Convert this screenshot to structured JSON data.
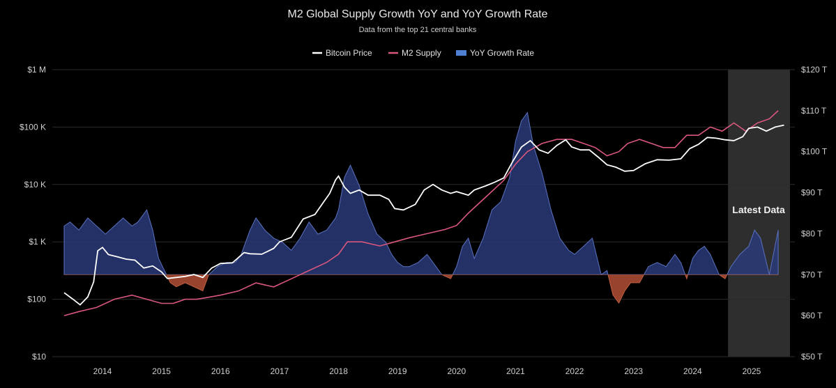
{
  "chart_data": {
    "type": "line",
    "title": "M2 Global Supply Growth YoY and YoY Growth Rate",
    "subtitle": "Data from the top 21 central banks",
    "x_ticks": [
      "2014",
      "2015",
      "2016",
      "2017",
      "2018",
      "2019",
      "2020",
      "2021",
      "2022",
      "2023",
      "2024",
      "2025"
    ],
    "xlim": [
      2013.35,
      2025.65
    ],
    "y_left": {
      "scale": "log",
      "ticks": [
        "$10",
        "$100",
        "$1 K",
        "$10 K",
        "$100 K",
        "$1 M"
      ],
      "ylim": [
        10,
        1000000
      ]
    },
    "y_right": {
      "ticks": [
        "$50 T",
        "$60 T",
        "$70 T",
        "$80 T",
        "$90 T",
        "$100 T",
        "$110 T",
        "$120 T"
      ],
      "ylim": [
        50,
        120
      ]
    },
    "legend": {
      "position": "top-center",
      "items": [
        "Bitcoin Price",
        "M2 Supply",
        "YoY Growth Rate"
      ]
    },
    "colors": {
      "bitcoin": "#ffffff",
      "m2": "#d9577d",
      "growth_pos": "#2a3a78",
      "growth_neg": "#a84a32",
      "shade": "#2e2e2e"
    },
    "annotation": {
      "label": "Latest Data",
      "x_start": 2024.6,
      "x_end": 2025.65
    },
    "series": [
      {
        "name": "Bitcoin Price",
        "axis": "left",
        "x": [
          2013.35,
          2013.5,
          2013.62,
          2013.75,
          2013.85,
          2013.92,
          2014.0,
          2014.1,
          2014.25,
          2014.4,
          2014.55,
          2014.7,
          2014.85,
          2015.0,
          2015.1,
          2015.25,
          2015.4,
          2015.55,
          2015.7,
          2015.85,
          2016.0,
          2016.2,
          2016.4,
          2016.5,
          2016.7,
          2016.9,
          2017.0,
          2017.2,
          2017.4,
          2017.6,
          2017.75,
          2017.85,
          2017.95,
          2018.0,
          2018.1,
          2018.2,
          2018.35,
          2018.5,
          2018.7,
          2018.85,
          2018.95,
          2019.1,
          2019.3,
          2019.45,
          2019.6,
          2019.75,
          2019.9,
          2020.0,
          2020.2,
          2020.3,
          2020.5,
          2020.65,
          2020.8,
          2020.95,
          2021.1,
          2021.25,
          2021.4,
          2021.55,
          2021.7,
          2021.85,
          2021.95,
          2022.1,
          2022.25,
          2022.4,
          2022.55,
          2022.7,
          2022.85,
          2023.0,
          2023.2,
          2023.4,
          2023.6,
          2023.8,
          2023.95,
          2024.1,
          2024.25,
          2024.4,
          2024.55,
          2024.7,
          2024.85,
          2024.95,
          2025.1,
          2025.25,
          2025.4,
          2025.55
        ],
        "y": [
          130,
          100,
          80,
          110,
          200,
          700,
          800,
          600,
          550,
          500,
          480,
          350,
          380,
          300,
          230,
          240,
          250,
          270,
          240,
          350,
          420,
          430,
          650,
          620,
          610,
          770,
          1000,
          1200,
          2500,
          3000,
          5000,
          7000,
          12000,
          14000,
          9000,
          7000,
          8000,
          6500,
          6500,
          5500,
          3800,
          3600,
          4500,
          8000,
          10000,
          8000,
          7000,
          7500,
          6500,
          8000,
          9500,
          11000,
          13000,
          25000,
          45000,
          58000,
          40000,
          35000,
          48000,
          60000,
          45000,
          40000,
          40000,
          30000,
          22000,
          20000,
          17000,
          17500,
          23000,
          27000,
          26500,
          28000,
          42000,
          50000,
          66000,
          64000,
          60000,
          58000,
          68000,
          95000,
          100000,
          85000,
          100000,
          108000
        ]
      },
      {
        "name": "M2 Supply",
        "axis": "right",
        "x": [
          2013.35,
          2013.6,
          2013.9,
          2014.2,
          2014.5,
          2014.75,
          2015.0,
          2015.2,
          2015.4,
          2015.6,
          2015.8,
          2016.0,
          2016.3,
          2016.6,
          2016.9,
          2017.2,
          2017.5,
          2017.8,
          2018.0,
          2018.15,
          2018.4,
          2018.7,
          2018.95,
          2019.2,
          2019.5,
          2019.8,
          2020.0,
          2020.2,
          2020.5,
          2020.8,
          2021.0,
          2021.2,
          2021.45,
          2021.7,
          2021.95,
          2022.15,
          2022.35,
          2022.55,
          2022.75,
          2022.9,
          2023.1,
          2023.3,
          2023.5,
          2023.7,
          2023.9,
          2024.1,
          2024.3,
          2024.5,
          2024.7,
          2024.9,
          2025.1,
          2025.3,
          2025.45
        ],
        "y": [
          60,
          61,
          62,
          64,
          65,
          64,
          63,
          63,
          64,
          64,
          64.5,
          65,
          66,
          68,
          67,
          69,
          71,
          73,
          75,
          78,
          78,
          77,
          78,
          79,
          80,
          81,
          82,
          85,
          89,
          93,
          97,
          100,
          102,
          103,
          103,
          102,
          101,
          99,
          100,
          102,
          103,
          102,
          101,
          101,
          104,
          104,
          106,
          105,
          107,
          105,
          107,
          108,
          110
        ]
      },
      {
        "name": "YoY Growth Rate",
        "axis": "growth",
        "ylim": [
          -10,
          42
        ],
        "x": [
          2013.35,
          2013.45,
          2013.6,
          2013.75,
          2013.9,
          2014.05,
          2014.2,
          2014.35,
          2014.5,
          2014.6,
          2014.75,
          2014.85,
          2014.95,
          2015.05,
          2015.15,
          2015.25,
          2015.4,
          2015.55,
          2015.7,
          2015.8,
          2015.95,
          2016.1,
          2016.25,
          2016.35,
          2016.5,
          2016.6,
          2016.75,
          2016.9,
          2017.05,
          2017.2,
          2017.35,
          2017.5,
          2017.65,
          2017.8,
          2017.95,
          2018.0,
          2018.1,
          2018.2,
          2018.35,
          2018.5,
          2018.65,
          2018.8,
          2018.9,
          2019.0,
          2019.1,
          2019.2,
          2019.35,
          2019.5,
          2019.6,
          2019.75,
          2019.9,
          2020.0,
          2020.1,
          2020.2,
          2020.3,
          2020.45,
          2020.6,
          2020.75,
          2020.9,
          2021.0,
          2021.1,
          2021.2,
          2021.3,
          2021.45,
          2021.6,
          2021.75,
          2021.9,
          2022.0,
          2022.15,
          2022.3,
          2022.45,
          2022.55,
          2022.65,
          2022.75,
          2022.85,
          2022.95,
          2023.1,
          2023.25,
          2023.4,
          2023.55,
          2023.7,
          2023.8,
          2023.9,
          2024.0,
          2024.1,
          2024.2,
          2024.3,
          2024.45,
          2024.55,
          2024.65,
          2024.8,
          2024.95,
          2025.05,
          2025.15,
          2025.3,
          2025.45
        ],
        "y": [
          12,
          13,
          11,
          14,
          12,
          10,
          12,
          14,
          12,
          13,
          16,
          11,
          4,
          1,
          -2,
          -3,
          -2,
          -3,
          -4,
          0,
          2,
          3,
          3,
          5,
          11,
          14,
          11,
          9,
          8,
          6,
          9,
          13,
          10,
          11,
          14,
          16,
          24,
          27,
          22,
          15,
          10,
          8,
          5,
          3,
          2,
          2,
          3,
          5,
          3,
          0,
          -1,
          2,
          7,
          9,
          4,
          9,
          16,
          18,
          24,
          33,
          38,
          40,
          32,
          25,
          16,
          9,
          6,
          5,
          7,
          9,
          0,
          1,
          -5,
          -7,
          -4,
          -2,
          -2,
          2,
          3,
          2,
          5,
          3,
          -1,
          4,
          6,
          7,
          5,
          0,
          -1,
          2,
          5,
          7,
          11,
          9,
          0,
          11
        ]
      }
    ]
  }
}
